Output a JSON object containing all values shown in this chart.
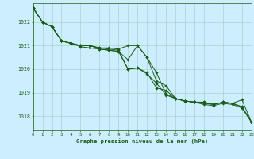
{
  "xlabel": "Graphe pression niveau de la mer (hPa)",
  "background_color": "#cceeff",
  "line_color": "#1a5c1a",
  "ylim": [
    1017.4,
    1022.8
  ],
  "xlim": [
    0,
    23
  ],
  "yticks": [
    1018,
    1019,
    1020,
    1021,
    1022
  ],
  "xticks": [
    0,
    1,
    2,
    3,
    4,
    5,
    6,
    7,
    8,
    9,
    10,
    11,
    12,
    13,
    14,
    15,
    16,
    17,
    18,
    19,
    20,
    21,
    22,
    23
  ],
  "series": [
    [
      1022.6,
      1022.0,
      1021.8,
      1021.2,
      1021.1,
      1021.0,
      1021.0,
      1020.9,
      1020.9,
      1020.85,
      1021.0,
      1021.0,
      1020.5,
      1019.5,
      1019.3,
      1018.75,
      1018.65,
      1018.6,
      1018.6,
      1018.5,
      1018.6,
      1018.55,
      1018.4,
      1017.75
    ],
    [
      1022.6,
      1022.0,
      1021.8,
      1021.2,
      1021.1,
      1021.0,
      1021.0,
      1020.9,
      1020.85,
      1020.8,
      1020.0,
      1020.05,
      1019.85,
      1019.2,
      1019.1,
      1018.75,
      1018.65,
      1018.6,
      1018.6,
      1018.5,
      1018.6,
      1018.55,
      1018.4,
      1017.75
    ],
    [
      1022.6,
      1022.0,
      1021.8,
      1021.2,
      1021.1,
      1021.0,
      1021.0,
      1020.85,
      1020.8,
      1020.75,
      1020.0,
      1020.05,
      1019.8,
      1019.4,
      1018.9,
      1018.75,
      1018.65,
      1018.6,
      1018.5,
      1018.45,
      1018.55,
      1018.5,
      1018.35,
      1017.75
    ],
    [
      1022.6,
      1022.0,
      1021.8,
      1021.2,
      1021.1,
      1020.95,
      1020.9,
      1020.85,
      1020.8,
      1020.75,
      1020.4,
      1021.0,
      1020.5,
      1019.85,
      1018.95,
      1018.75,
      1018.65,
      1018.6,
      1018.55,
      1018.5,
      1018.6,
      1018.55,
      1018.7,
      1017.75
    ]
  ],
  "figsize": [
    3.2,
    2.0
  ],
  "dpi": 100
}
